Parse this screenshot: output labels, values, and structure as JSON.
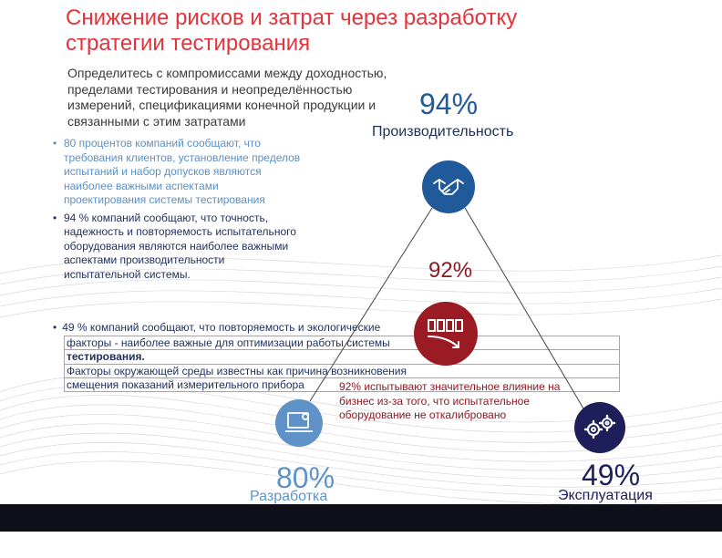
{
  "title": "Снижение рисков и затрат через разработку стратегии тестирования",
  "intro": "Определитесь с компромиссами между доходностью, пределами тестирования и неопределённостью измерений, спецификациями конечной продукции и связанными с этим затратами",
  "bullets": [
    "80 процентов компаний сообщают, что требования клиентов, установление пределов испытаний и набор допусков являются наиболее важными аспектами проектирования системы тестирования",
    "94 % компаний сообщают, что точность, надежность и повторяемость испытательного оборудования являются наиболее важными аспектами производительности испытательной системы."
  ],
  "bullet3": {
    "line1": "49 %  компаний сообщают, что повторяемость и экологические",
    "rows": [
      "факторы - наиболее важные для оптимизации работы системы",
      "тестирования.",
      "Факторы окружающей среды известны как причина возникновения",
      "смещения показаний измерительного прибора"
    ]
  },
  "nodes": {
    "top": {
      "percent": "94%",
      "label": "Производительность",
      "icon": "handshake-icon",
      "color": "#215a9a"
    },
    "center": {
      "percent": "92%",
      "icon": "meter-decline-icon",
      "color": "#9b1b24"
    },
    "left": {
      "percent": "80%",
      "label": "Разработка",
      "icon": "laptop-gear-icon",
      "color": "#5f93c8"
    },
    "right": {
      "percent": "49%",
      "label": "Эксплуатация",
      "icon": "gears-icon",
      "color": "#1e1e5a"
    }
  },
  "center_note": "92% испытывают значительное влияние на бизнес из-за того, что испытательное оборудование не откалибровано",
  "colors": {
    "title": "#e2343c",
    "dark_blue": "#1e2f5c",
    "light_blue": "#5b8fc5",
    "maroon": "#9b1b24",
    "bottom_bar": "#0f0f1a"
  }
}
